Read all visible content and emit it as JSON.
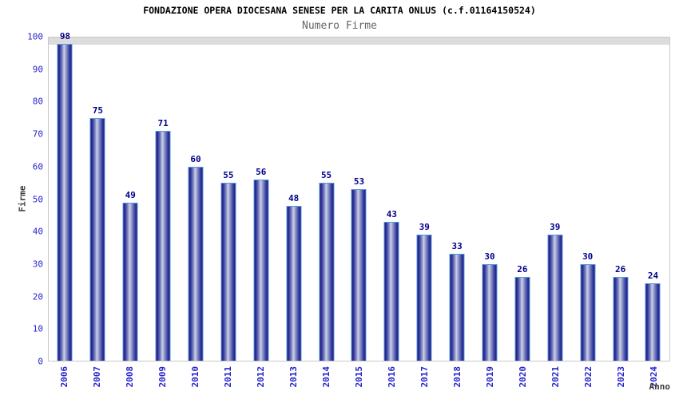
{
  "chart_data": {
    "type": "bar",
    "title": "FONDAZIONE OPERA DIOCESANA SENESE PER LA CARITA ONLUS (c.f.01164150524)",
    "subtitle": "Numero Firme",
    "xlabel": "Anno",
    "ylabel": "Firme",
    "categories": [
      "2006",
      "2007",
      "2008",
      "2009",
      "2010",
      "2011",
      "2012",
      "2013",
      "2014",
      "2015",
      "2016",
      "2017",
      "2018",
      "2019",
      "2020",
      "2021",
      "2022",
      "2023",
      "2024"
    ],
    "values": [
      98,
      75,
      49,
      71,
      60,
      55,
      56,
      48,
      55,
      53,
      43,
      39,
      33,
      30,
      26,
      39,
      30,
      26,
      24
    ],
    "ylim": [
      0,
      100
    ],
    "ytick_step": 10,
    "grid": "horizontal-bands-alternating",
    "legend": "none",
    "colors": {
      "bar_fill_dark": "#1c1c80",
      "bar_fill_mid": "#8f98c8",
      "bar_fill_light": "#ccd2ea",
      "bar_border": "#569add",
      "band_shaded": "#f2f2f2",
      "band_plain": "#ffffff",
      "grid_line": "#dcdcdc",
      "plot_border": "#c8c8c8",
      "tick_label_blue": "#2424cc",
      "value_label_navy": "#00008b",
      "title_color": "#000000",
      "subtitle_color": "#666666",
      "axis_title_color": "#3a3a3a"
    }
  }
}
